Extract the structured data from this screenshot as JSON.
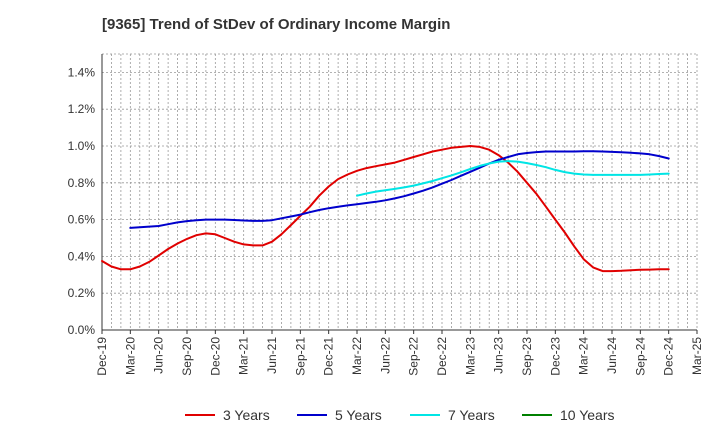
{
  "chart_data": {
    "type": "line",
    "title": "[9365]  Trend of StDev of Ordinary Income Margin",
    "x": [
      "Dec-19",
      "Mar-20",
      "Jun-20",
      "Sep-20",
      "Dec-20",
      "Mar-21",
      "Jun-21",
      "Sep-21",
      "Dec-21",
      "Mar-22",
      "Jun-22",
      "Sep-22",
      "Dec-22",
      "Mar-23",
      "Jun-23",
      "Sep-23",
      "Dec-23",
      "Mar-24",
      "Jun-24",
      "Sep-24",
      "Dec-24",
      "Mar-25"
    ],
    "y_ticks": [
      "0.0%",
      "0.2%",
      "0.4%",
      "0.6%",
      "0.8%",
      "1.0%",
      "1.2%",
      "1.4%"
    ],
    "ylim": [
      0,
      1.5
    ],
    "y_unit": "%",
    "grid": true,
    "legend_position": "bottom",
    "series": [
      {
        "name": "3 Years",
        "color": "#e00000",
        "points": [
          [
            "Dec-19",
            0.375
          ],
          [
            "Jan-20",
            0.345
          ],
          [
            "Feb-20",
            0.33
          ],
          [
            "Mar-20",
            0.33
          ],
          [
            "Apr-20",
            0.345
          ],
          [
            "May-20",
            0.37
          ],
          [
            "Jun-20",
            0.405
          ],
          [
            "Jul-20",
            0.44
          ],
          [
            "Aug-20",
            0.47
          ],
          [
            "Sep-20",
            0.495
          ],
          [
            "Oct-20",
            0.515
          ],
          [
            "Nov-20",
            0.525
          ],
          [
            "Dec-20",
            0.52
          ],
          [
            "Jan-21",
            0.5
          ],
          [
            "Feb-21",
            0.48
          ],
          [
            "Mar-21",
            0.465
          ],
          [
            "Apr-21",
            0.46
          ],
          [
            "May-21",
            0.46
          ],
          [
            "Jun-21",
            0.48
          ],
          [
            "Jul-21",
            0.52
          ],
          [
            "Aug-21",
            0.57
          ],
          [
            "Sep-21",
            0.62
          ],
          [
            "Oct-21",
            0.67
          ],
          [
            "Nov-21",
            0.73
          ],
          [
            "Dec-21",
            0.78
          ],
          [
            "Jan-22",
            0.82
          ],
          [
            "Feb-22",
            0.845
          ],
          [
            "Mar-22",
            0.865
          ],
          [
            "Apr-22",
            0.88
          ],
          [
            "May-22",
            0.89
          ],
          [
            "Jun-22",
            0.9
          ],
          [
            "Jul-22",
            0.91
          ],
          [
            "Aug-22",
            0.925
          ],
          [
            "Sep-22",
            0.94
          ],
          [
            "Oct-22",
            0.955
          ],
          [
            "Nov-22",
            0.97
          ],
          [
            "Dec-22",
            0.98
          ],
          [
            "Jan-23",
            0.99
          ],
          [
            "Feb-23",
            0.995
          ],
          [
            "Mar-23",
            1.0
          ],
          [
            "Apr-23",
            0.995
          ],
          [
            "May-23",
            0.98
          ],
          [
            "Jun-23",
            0.95
          ],
          [
            "Jul-23",
            0.91
          ],
          [
            "Aug-23",
            0.86
          ],
          [
            "Sep-23",
            0.8
          ],
          [
            "Oct-23",
            0.74
          ],
          [
            "Nov-23",
            0.67
          ],
          [
            "Dec-23",
            0.6
          ],
          [
            "Jan-24",
            0.53
          ],
          [
            "Feb-24",
            0.455
          ],
          [
            "Mar-24",
            0.385
          ],
          [
            "Apr-24",
            0.34
          ],
          [
            "May-24",
            0.32
          ],
          [
            "Jun-24",
            0.32
          ],
          [
            "Jul-24",
            0.322
          ],
          [
            "Aug-24",
            0.325
          ],
          [
            "Sep-24",
            0.327
          ],
          [
            "Oct-24",
            0.328
          ],
          [
            "Nov-24",
            0.33
          ],
          [
            "Dec-24",
            0.33
          ]
        ]
      },
      {
        "name": "5 Years",
        "color": "#0000cc",
        "points": [
          [
            "Mar-20",
            0.555
          ],
          [
            "Apr-20",
            0.558
          ],
          [
            "May-20",
            0.562
          ],
          [
            "Jun-20",
            0.565
          ],
          [
            "Jul-20",
            0.575
          ],
          [
            "Aug-20",
            0.585
          ],
          [
            "Sep-20",
            0.592
          ],
          [
            "Oct-20",
            0.597
          ],
          [
            "Nov-20",
            0.6
          ],
          [
            "Dec-20",
            0.6
          ],
          [
            "Jan-21",
            0.6
          ],
          [
            "Feb-21",
            0.598
          ],
          [
            "Mar-21",
            0.595
          ],
          [
            "Apr-21",
            0.593
          ],
          [
            "May-21",
            0.593
          ],
          [
            "Jun-21",
            0.597
          ],
          [
            "Jul-21",
            0.607
          ],
          [
            "Aug-21",
            0.617
          ],
          [
            "Sep-21",
            0.627
          ],
          [
            "Oct-21",
            0.64
          ],
          [
            "Nov-21",
            0.652
          ],
          [
            "Dec-21",
            0.662
          ],
          [
            "Jan-22",
            0.67
          ],
          [
            "Feb-22",
            0.677
          ],
          [
            "Mar-22",
            0.683
          ],
          [
            "Apr-22",
            0.69
          ],
          [
            "May-22",
            0.697
          ],
          [
            "Jun-22",
            0.705
          ],
          [
            "Jul-22",
            0.715
          ],
          [
            "Aug-22",
            0.727
          ],
          [
            "Sep-22",
            0.742
          ],
          [
            "Oct-22",
            0.757
          ],
          [
            "Nov-22",
            0.775
          ],
          [
            "Dec-22",
            0.795
          ],
          [
            "Jan-23",
            0.815
          ],
          [
            "Feb-23",
            0.838
          ],
          [
            "Mar-23",
            0.86
          ],
          [
            "Apr-23",
            0.882
          ],
          [
            "May-23",
            0.905
          ],
          [
            "Jun-23",
            0.925
          ],
          [
            "Jul-23",
            0.94
          ],
          [
            "Aug-23",
            0.955
          ],
          [
            "Sep-23",
            0.962
          ],
          [
            "Oct-23",
            0.967
          ],
          [
            "Nov-23",
            0.97
          ],
          [
            "Dec-23",
            0.97
          ],
          [
            "Jan-24",
            0.97
          ],
          [
            "Feb-24",
            0.97
          ],
          [
            "Mar-24",
            0.972
          ],
          [
            "Apr-24",
            0.972
          ],
          [
            "May-24",
            0.97
          ],
          [
            "Jun-24",
            0.968
          ],
          [
            "Jul-24",
            0.966
          ],
          [
            "Aug-24",
            0.963
          ],
          [
            "Sep-24",
            0.96
          ],
          [
            "Oct-24",
            0.955
          ],
          [
            "Nov-24",
            0.945
          ],
          [
            "Dec-24",
            0.932
          ]
        ]
      },
      {
        "name": "7 Years",
        "color": "#00e5e5",
        "points": [
          [
            "Mar-22",
            0.73
          ],
          [
            "Apr-22",
            0.742
          ],
          [
            "May-22",
            0.752
          ],
          [
            "Jun-22",
            0.76
          ],
          [
            "Jul-22",
            0.767
          ],
          [
            "Aug-22",
            0.775
          ],
          [
            "Sep-22",
            0.785
          ],
          [
            "Oct-22",
            0.797
          ],
          [
            "Nov-22",
            0.81
          ],
          [
            "Dec-22",
            0.825
          ],
          [
            "Jan-23",
            0.84
          ],
          [
            "Feb-23",
            0.857
          ],
          [
            "Mar-23",
            0.875
          ],
          [
            "Apr-23",
            0.892
          ],
          [
            "May-23",
            0.905
          ],
          [
            "Jun-23",
            0.915
          ],
          [
            "Jul-23",
            0.918
          ],
          [
            "Aug-23",
            0.915
          ],
          [
            "Sep-23",
            0.907
          ],
          [
            "Oct-23",
            0.897
          ],
          [
            "Nov-23",
            0.885
          ],
          [
            "Dec-23",
            0.87
          ],
          [
            "Jan-24",
            0.858
          ],
          [
            "Feb-24",
            0.85
          ],
          [
            "Mar-24",
            0.845
          ],
          [
            "Apr-24",
            0.843
          ],
          [
            "May-24",
            0.843
          ],
          [
            "Jun-24",
            0.843
          ],
          [
            "Jul-24",
            0.843
          ],
          [
            "Aug-24",
            0.843
          ],
          [
            "Sep-24",
            0.843
          ],
          [
            "Oct-24",
            0.845
          ],
          [
            "Nov-24",
            0.848
          ],
          [
            "Dec-24",
            0.85
          ]
        ]
      },
      {
        "name": "10 Years",
        "color": "#008000",
        "points": []
      }
    ]
  }
}
